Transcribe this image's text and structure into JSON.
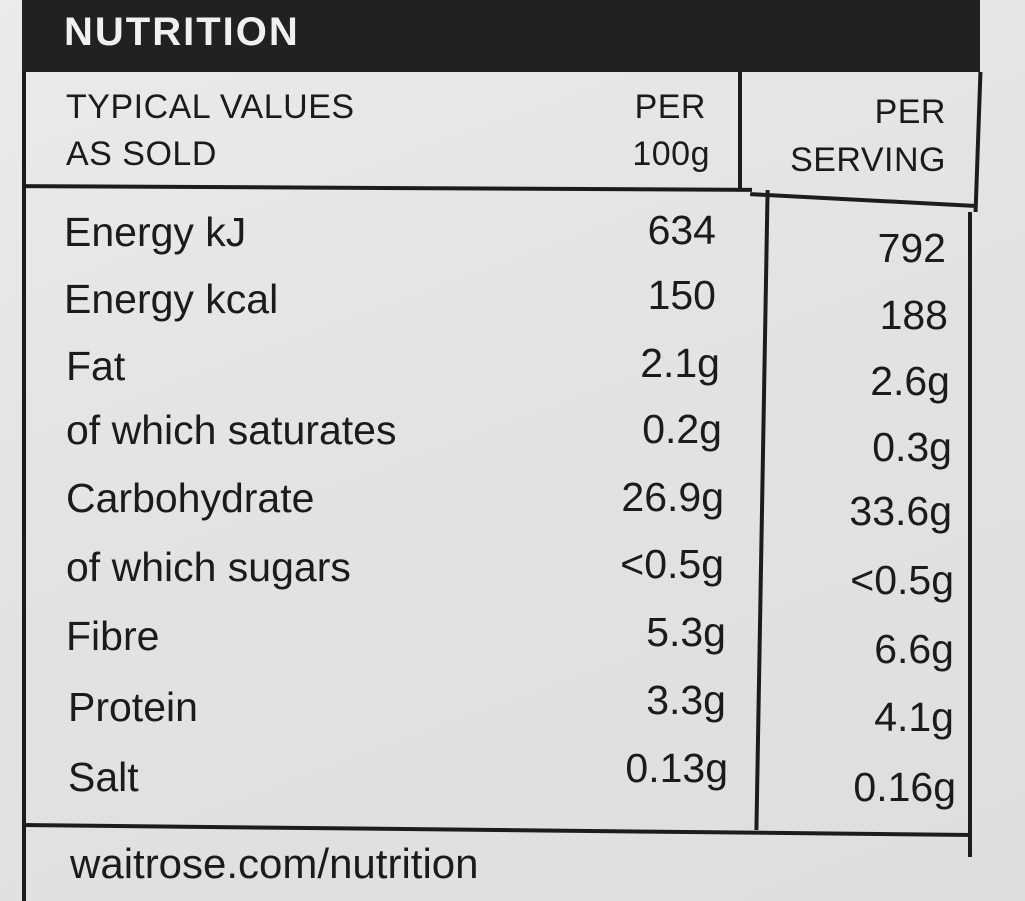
{
  "title": "NUTRITION",
  "headers": {
    "typical_line1": "TYPICAL VALUES",
    "typical_line2": "AS SOLD",
    "per100_line1": "PER",
    "per100_line2": "100g",
    "serving_line1": "PER",
    "serving_line2": "SERVING"
  },
  "rows": [
    {
      "name": "Energy kJ",
      "per_100g": "634",
      "per_serving": "792"
    },
    {
      "name": "Energy kcal",
      "per_100g": "150",
      "per_serving": "188"
    },
    {
      "name": "Fat",
      "per_100g": "2.1g",
      "per_serving": "2.6g"
    },
    {
      "name": "of which saturates",
      "per_100g": "0.2g",
      "per_serving": "0.3g"
    },
    {
      "name": "Carbohydrate",
      "per_100g": "26.9g",
      "per_serving": "33.6g"
    },
    {
      "name": "of which sugars",
      "per_100g": "<0.5g",
      "per_serving": "<0.5g"
    },
    {
      "name": "Fibre",
      "per_100g": "5.3g",
      "per_serving": "6.6g"
    },
    {
      "name": "Protein",
      "per_100g": "3.3g",
      "per_serving": "4.1g"
    },
    {
      "name": "Salt",
      "per_100g": "0.13g",
      "per_serving": "0.16g"
    }
  ],
  "footer": "waitrose.com/nutrition"
}
